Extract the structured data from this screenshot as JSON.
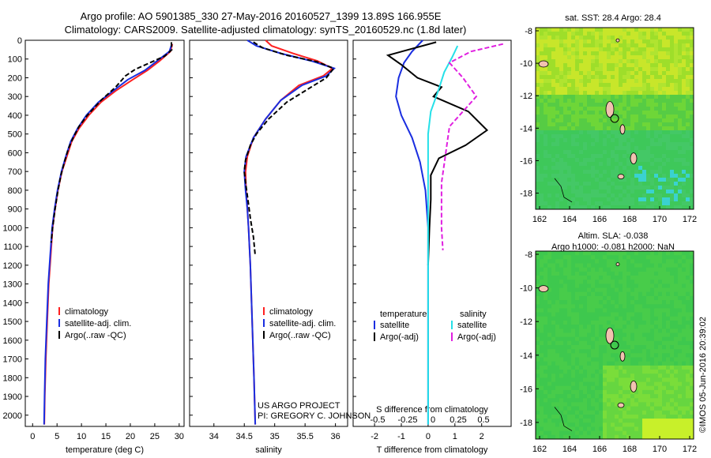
{
  "header": {
    "line1": "Argo profile: AO 5901385_330 27-May-2016 20160527_1399 13.89S 166.955E",
    "line2": "Climatology: CARS2009. Satellite-adjusted climatology: synTS_20160529.nc (1.8d later)"
  },
  "colors": {
    "climatology": "#ff2020",
    "satellite": "#1a2ee0",
    "argo": "#000000",
    "salinity_satellite": "#25e0e8",
    "salinity_argo": "#e020e0"
  },
  "credit": {
    "line1": "US ARGO PROJECT",
    "line2": "PI: GREGORY C. JOHNSON"
  },
  "timestamp": "©IMOS 05-Jun-2016 20:39:02",
  "chart_data": [
    {
      "type": "line",
      "xlabel": "temperature (deg C)",
      "ylabel": "",
      "xlim": [
        -1.5,
        31
      ],
      "ylim": [
        2060,
        0
      ],
      "xticks": [
        "0",
        "5",
        "10",
        "15",
        "20",
        "25",
        "30"
      ],
      "xtick_values": [
        0,
        5,
        10,
        15,
        20,
        25,
        30
      ],
      "yticks": [
        "0",
        "100",
        "200",
        "300",
        "400",
        "500",
        "600",
        "700",
        "800",
        "900",
        "1000",
        "1100",
        "1200",
        "1300",
        "1400",
        "1500",
        "1600",
        "1700",
        "1800",
        "1900",
        "2000"
      ],
      "ytick_values": [
        0,
        100,
        200,
        300,
        400,
        500,
        600,
        700,
        800,
        900,
        1000,
        1100,
        1200,
        1300,
        1400,
        1500,
        1600,
        1700,
        1800,
        1900,
        2000
      ],
      "legend": {
        "placement": "bottom-center",
        "items": [
          "climatology",
          "satellite-adj. clim.",
          "Argo(..raw -QC)"
        ]
      },
      "series": [
        {
          "name": "climatology",
          "color": "#ff2020",
          "dashed": false,
          "points": [
            [
              28.6,
              20
            ],
            [
              28.2,
              60
            ],
            [
              26,
              110
            ],
            [
              23.5,
              160
            ],
            [
              20.5,
              210
            ],
            [
              17,
              270
            ],
            [
              14,
              330
            ],
            [
              11.5,
              400
            ],
            [
              9.5,
              470
            ],
            [
              8,
              540
            ],
            [
              7,
              620
            ],
            [
              6,
              700
            ],
            [
              5.2,
              800
            ],
            [
              4.6,
              900
            ],
            [
              4.1,
              1000
            ],
            [
              3.7,
              1150
            ],
            [
              3.3,
              1300
            ],
            [
              3,
              1500
            ],
            [
              2.7,
              1700
            ],
            [
              2.5,
              1900
            ],
            [
              2.4,
              2050
            ]
          ]
        },
        {
          "name": "satellite-adj. clim.",
          "color": "#1a2ee0",
          "dashed": false,
          "points": [
            [
              28.5,
              20
            ],
            [
              28,
              60
            ],
            [
              25.5,
              110
            ],
            [
              23,
              160
            ],
            [
              19.5,
              210
            ],
            [
              16.5,
              270
            ],
            [
              13.5,
              330
            ],
            [
              11,
              400
            ],
            [
              9.2,
              470
            ],
            [
              7.8,
              540
            ],
            [
              6.8,
              620
            ],
            [
              5.9,
              700
            ],
            [
              5.1,
              800
            ],
            [
              4.5,
              900
            ],
            [
              4,
              1000
            ],
            [
              3.6,
              1150
            ],
            [
              3.2,
              1300
            ],
            [
              2.9,
              1500
            ],
            [
              2.6,
              1700
            ],
            [
              2.45,
              1900
            ],
            [
              2.35,
              2050
            ]
          ]
        },
        {
          "name": "Argo(..raw -QC)",
          "color": "#000000",
          "dashed": true,
          "points": [
            [
              28.4,
              10
            ],
            [
              28.5,
              50
            ],
            [
              27,
              85
            ],
            [
              24,
              120
            ],
            [
              21,
              155
            ],
            [
              19,
              190
            ],
            [
              17,
              250
            ],
            [
              14,
              320
            ],
            [
              11.2,
              400
            ],
            [
              9.5,
              460
            ],
            [
              8.3,
              520
            ],
            [
              7.3,
              580
            ],
            [
              6.5,
              650
            ],
            [
              5.8,
              720
            ],
            [
              5.2,
              800
            ],
            [
              4.6,
              900
            ],
            [
              4.1,
              1000
            ],
            [
              3.8,
              1080
            ]
          ]
        }
      ]
    },
    {
      "type": "line",
      "xlabel": "salinity",
      "xlim": [
        33.6,
        36.2
      ],
      "ylim": [
        2060,
        0
      ],
      "xticks": [
        "34",
        "34.5",
        "35",
        "35.5",
        "36"
      ],
      "xtick_values": [
        34,
        34.5,
        35,
        35.5,
        36
      ],
      "legend": {
        "placement": "bottom-right",
        "items": [
          "climatology",
          "satellite-adj. clim.",
          "Argo(..raw -QC)"
        ]
      },
      "series": [
        {
          "name": "climatology",
          "color": "#ff2020",
          "dashed": false,
          "points": [
            [
              34.85,
              0
            ],
            [
              34.95,
              30
            ],
            [
              35.3,
              70
            ],
            [
              35.7,
              110
            ],
            [
              35.95,
              150
            ],
            [
              35.8,
              190
            ],
            [
              35.4,
              240
            ],
            [
              35.1,
              320
            ],
            [
              34.85,
              420
            ],
            [
              34.65,
              520
            ],
            [
              34.55,
              620
            ],
            [
              34.52,
              700
            ],
            [
              34.53,
              800
            ],
            [
              34.55,
              900
            ],
            [
              34.57,
              1000
            ],
            [
              34.6,
              1200
            ],
            [
              34.63,
              1500
            ],
            [
              34.66,
              1800
            ],
            [
              34.68,
              2050
            ]
          ]
        },
        {
          "name": "satellite-adj. clim.",
          "color": "#1a2ee0",
          "dashed": false,
          "points": [
            [
              34.55,
              0
            ],
            [
              34.7,
              30
            ],
            [
              35.1,
              70
            ],
            [
              35.6,
              110
            ],
            [
              35.98,
              150
            ],
            [
              35.85,
              190
            ],
            [
              35.45,
              240
            ],
            [
              35.1,
              320
            ],
            [
              34.85,
              420
            ],
            [
              34.65,
              520
            ],
            [
              34.53,
              620
            ],
            [
              34.5,
              700
            ],
            [
              34.52,
              800
            ],
            [
              34.55,
              900
            ],
            [
              34.57,
              1000
            ],
            [
              34.6,
              1200
            ],
            [
              34.63,
              1500
            ],
            [
              34.66,
              1800
            ],
            [
              34.68,
              2050
            ]
          ]
        },
        {
          "name": "Argo(..raw -QC)",
          "color": "#000000",
          "dashed": true,
          "points": [
            [
              34.65,
              10
            ],
            [
              34.8,
              40
            ],
            [
              35.2,
              80
            ],
            [
              35.7,
              115
            ],
            [
              35.97,
              150
            ],
            [
              35.85,
              200
            ],
            [
              35.55,
              260
            ],
            [
              35.2,
              330
            ],
            [
              34.9,
              420
            ],
            [
              34.7,
              500
            ],
            [
              34.6,
              560
            ],
            [
              34.52,
              640
            ],
            [
              34.5,
              700
            ],
            [
              34.53,
              780
            ],
            [
              34.56,
              850
            ],
            [
              34.6,
              950
            ],
            [
              34.65,
              1050
            ],
            [
              34.68,
              1150
            ]
          ]
        }
      ]
    },
    {
      "type": "line",
      "xlabel": "T difference from climatology",
      "xlabel_top": "S difference from climatology",
      "xlim": [
        -2.8,
        3.1
      ],
      "ylim": [
        2060,
        0
      ],
      "xticks": [
        "-2",
        "-1",
        "0",
        "1",
        "2"
      ],
      "xtick_values": [
        -2,
        -1,
        0,
        1,
        2
      ],
      "xticks_top": [
        "-0.5",
        "-0.25",
        "0",
        "0.25",
        "0.5"
      ],
      "legend": {
        "placement": "bottom",
        "temperature_title": "temperature",
        "salinity_title": "salinity",
        "items": [
          "satellite",
          "Argo(-adj)",
          "satellite",
          "Argo(-adj)"
        ]
      },
      "series": [
        {
          "name": "satellite",
          "group": "temperature",
          "color": "#1a2ee0",
          "dashed": false,
          "points": [
            [
              -0.2,
              0
            ],
            [
              -0.6,
              60
            ],
            [
              -0.9,
              120
            ],
            [
              -1.1,
              200
            ],
            [
              -1.2,
              300
            ],
            [
              -1,
              400
            ],
            [
              -0.6,
              520
            ],
            [
              -0.3,
              650
            ],
            [
              -0.1,
              800
            ],
            [
              0,
              1000
            ],
            [
              0,
              1400
            ],
            [
              0,
              2050
            ]
          ]
        },
        {
          "name": "Argo(-adj)",
          "group": "temperature",
          "color": "#000000",
          "dashed": false,
          "points": [
            [
              0.3,
              10
            ],
            [
              -1.5,
              80
            ],
            [
              -1,
              130
            ],
            [
              -0.4,
              200
            ],
            [
              0.5,
              250
            ],
            [
              0.2,
              300
            ],
            [
              1.5,
              380
            ],
            [
              2.2,
              480
            ],
            [
              1.4,
              560
            ],
            [
              0.4,
              630
            ],
            [
              0.1,
              720
            ],
            [
              0.1,
              850
            ],
            [
              0.05,
              1000
            ],
            [
              0,
              1200
            ]
          ]
        },
        {
          "name": "satellite",
          "group": "salinity",
          "color": "#25e0e8",
          "dashed": false,
          "points": [
            [
              1.1,
              30
            ],
            [
              0.9,
              90
            ],
            [
              0.6,
              170
            ],
            [
              0.4,
              260
            ],
            [
              0.1,
              380
            ],
            [
              0,
              500
            ],
            [
              0,
              800
            ],
            [
              0,
              2050
            ]
          ]
        },
        {
          "name": "Argo(-adj)",
          "group": "salinity",
          "color": "#e020e0",
          "dashed": true,
          "points": [
            [
              2.8,
              20
            ],
            [
              1.6,
              60
            ],
            [
              0.8,
              120
            ],
            [
              1.3,
              200
            ],
            [
              1.8,
              300
            ],
            [
              1.3,
              380
            ],
            [
              0.8,
              460
            ],
            [
              0.7,
              560
            ],
            [
              0.6,
              660
            ],
            [
              0.5,
              760
            ],
            [
              0.5,
              900
            ],
            [
              0.5,
              1000
            ],
            [
              0.55,
              1120
            ]
          ]
        }
      ]
    }
  ],
  "maps": [
    {
      "title": "sat. SST: 28.4  Argo: 28.4",
      "xticks": [
        "162",
        "164",
        "166",
        "168",
        "170",
        "172"
      ],
      "yticks": [
        "-8",
        "-10",
        "-12",
        "-14",
        "-16",
        "-18"
      ],
      "type": "sst"
    },
    {
      "title_line1": "Altim. SLA: -0.038",
      "title_line2": "Argo h1000: -0.081 h2000: NaN",
      "xticks": [
        "162",
        "164",
        "166",
        "168",
        "170",
        "172"
      ],
      "yticks": [
        "-8",
        "-10",
        "-12",
        "-14",
        "-16",
        "-18"
      ],
      "type": "sla"
    }
  ]
}
